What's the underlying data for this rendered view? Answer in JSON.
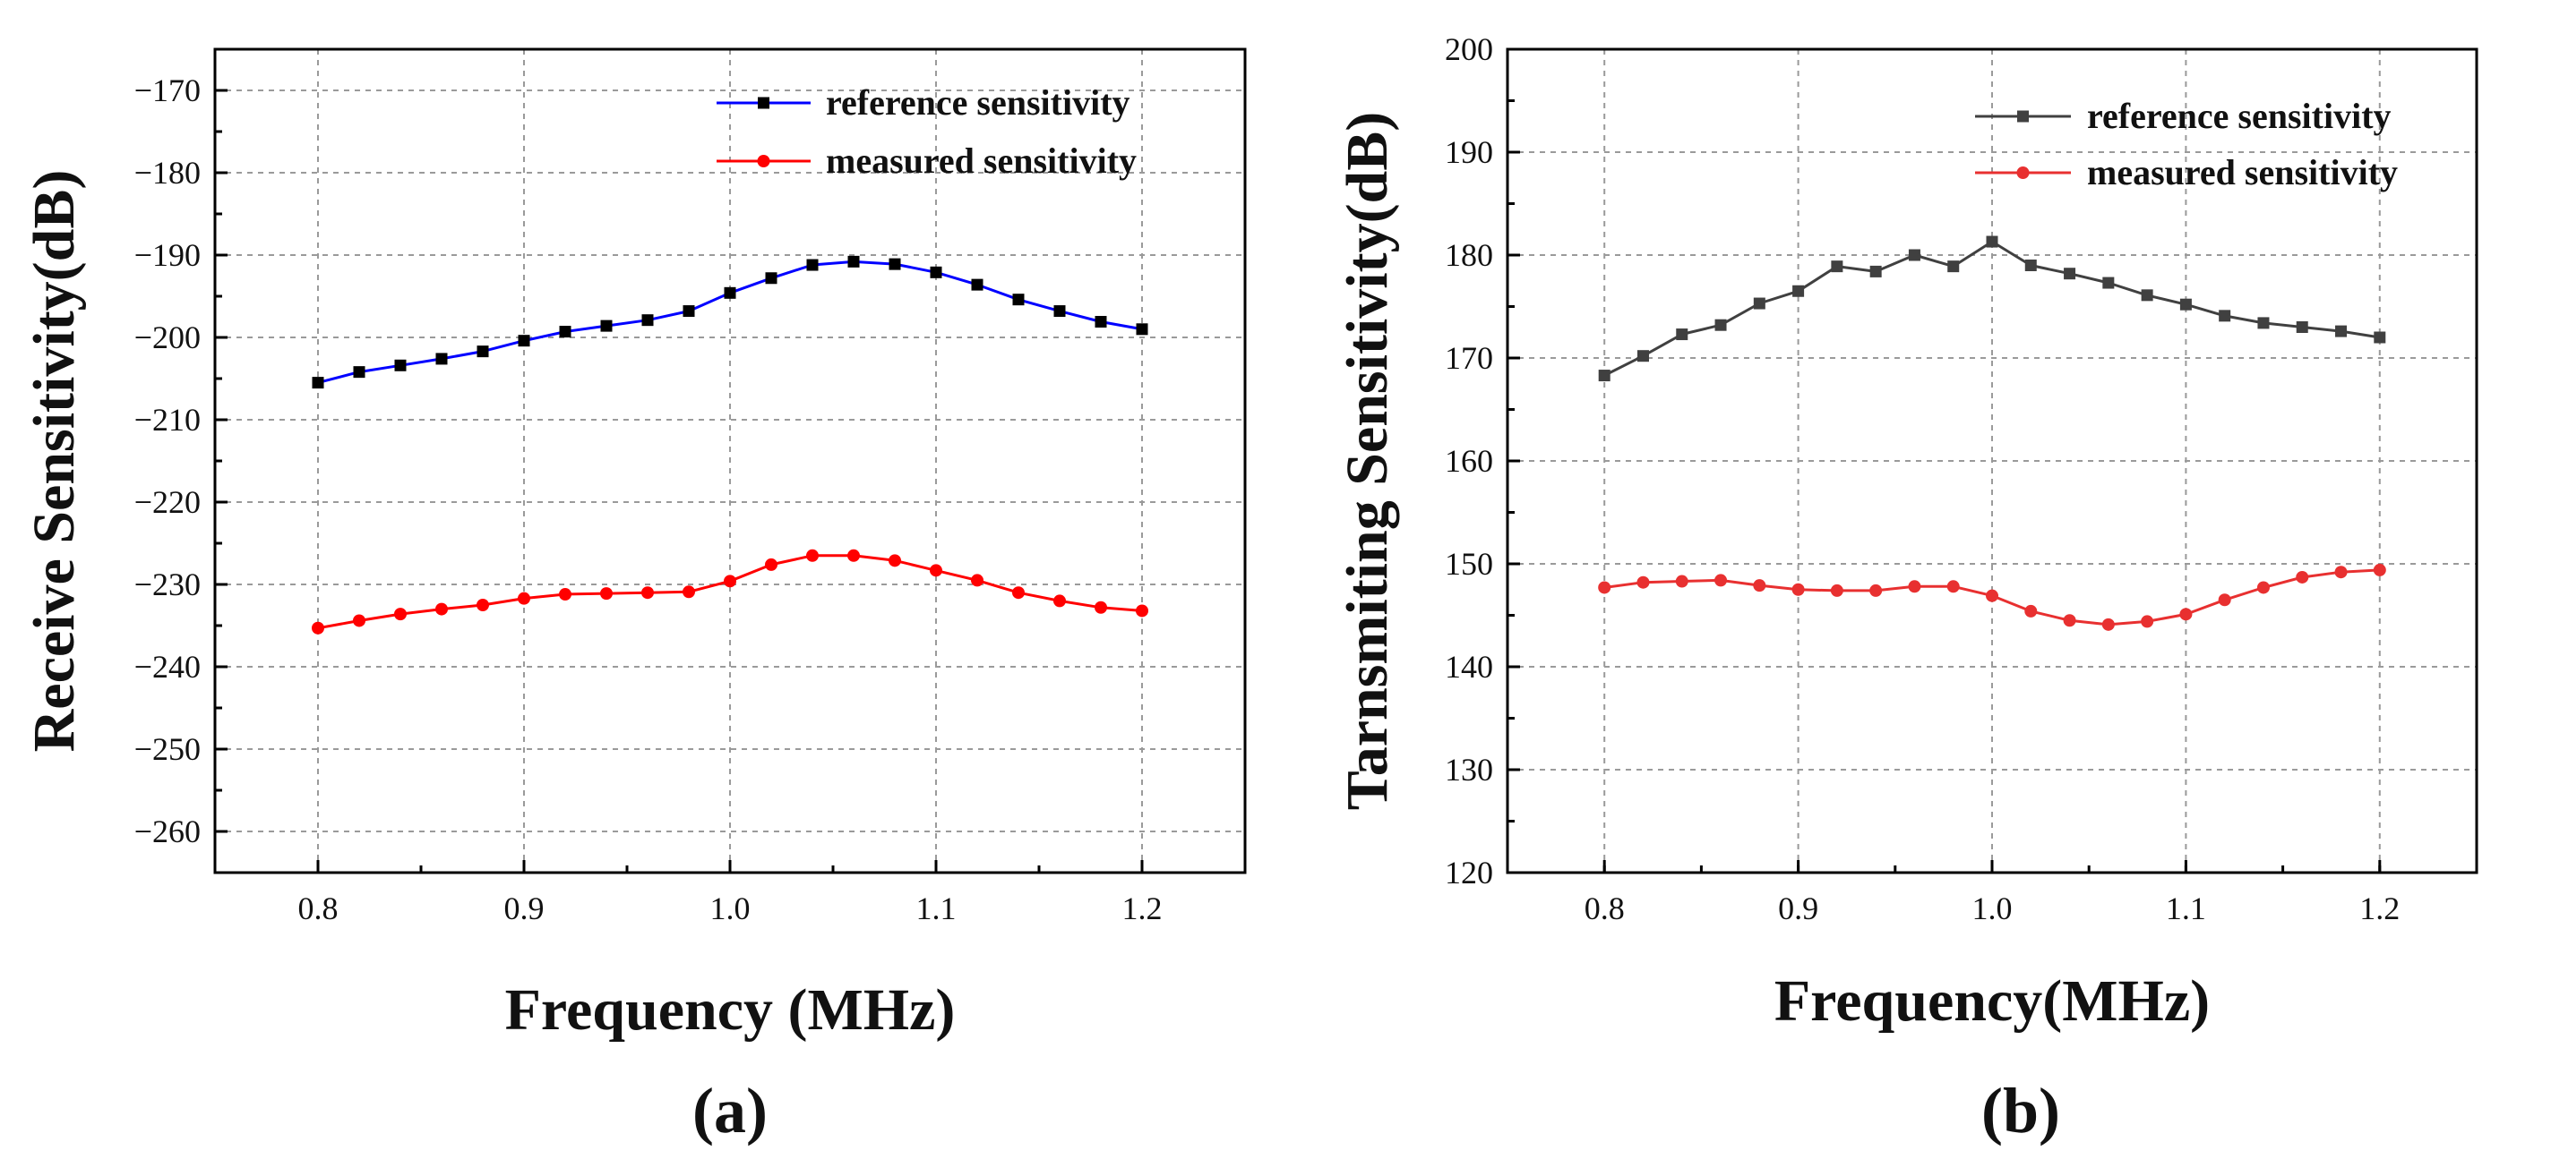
{
  "chart_data": [
    {
      "type": "line",
      "panel_label": "(a)",
      "xlabel": "Frequency (MHz)",
      "ylabel": "Receive Sensitivity(dB)",
      "xlim": [
        0.75,
        1.25
      ],
      "ylim": [
        -265,
        -165
      ],
      "xticks": [
        "0.8",
        "0.9",
        "1.0",
        "1.1",
        "1.2"
      ],
      "yticks": [
        "−170",
        "−180",
        "−190",
        "−200",
        "−210",
        "−220",
        "−230",
        "−240",
        "−250",
        "−260"
      ],
      "grid": true,
      "legend_position": "top-right",
      "x": [
        0.8,
        0.82,
        0.84,
        0.86,
        0.88,
        0.9,
        0.92,
        0.94,
        0.96,
        0.98,
        1.0,
        1.02,
        1.04,
        1.06,
        1.08,
        1.1,
        1.12,
        1.14,
        1.16,
        1.18,
        1.2
      ],
      "series": [
        {
          "name": "reference sensitivity",
          "color": "#0000ff",
          "marker": "square",
          "marker_color": "#000000",
          "values": [
            -205.5,
            -204.2,
            -203.4,
            -202.6,
            -201.7,
            -200.4,
            -199.3,
            -198.6,
            -197.9,
            -196.8,
            -194.6,
            -192.8,
            -191.2,
            -190.8,
            -191.1,
            -192.1,
            -193.6,
            -195.4,
            -196.8,
            -198.1,
            -199.0
          ]
        },
        {
          "name": "measured sensitivity",
          "color": "#ff0000",
          "marker": "circle",
          "marker_color": "#ff0000",
          "values": [
            -235.3,
            -234.4,
            -233.6,
            -233.0,
            -232.5,
            -231.7,
            -231.2,
            -231.1,
            -231.0,
            -230.9,
            -229.6,
            -227.6,
            -226.5,
            -226.5,
            -227.1,
            -228.3,
            -229.5,
            -231.0,
            -232.0,
            -232.8,
            -233.2
          ]
        }
      ]
    },
    {
      "type": "line",
      "panel_label": "(b)",
      "xlabel": "Frequency(MHz)",
      "ylabel": "Tarnsmiting Sensitivity(dB)",
      "xlim": [
        0.75,
        1.25
      ],
      "ylim": [
        120,
        200
      ],
      "xticks": [
        "0.8",
        "0.9",
        "1.0",
        "1.1",
        "1.2"
      ],
      "yticks": [
        "120",
        "130",
        "140",
        "150",
        "160",
        "170",
        "180",
        "190",
        "200"
      ],
      "grid": true,
      "legend_position": "top-right",
      "x": [
        0.8,
        0.82,
        0.84,
        0.86,
        0.88,
        0.9,
        0.92,
        0.94,
        0.96,
        0.98,
        1.0,
        1.02,
        1.04,
        1.06,
        1.08,
        1.1,
        1.12,
        1.14,
        1.16,
        1.18,
        1.2
      ],
      "series": [
        {
          "name": "reference sensitivity",
          "color": "#404040",
          "marker": "square",
          "marker_color": "#404040",
          "values": [
            168.3,
            170.2,
            172.3,
            173.2,
            175.3,
            176.5,
            178.9,
            178.4,
            180.0,
            178.9,
            181.3,
            179.0,
            178.2,
            177.3,
            176.1,
            175.2,
            174.1,
            173.4,
            173.0,
            172.6,
            172.0
          ]
        },
        {
          "name": "measured sensitivity",
          "color": "#e83030",
          "marker": "circle",
          "marker_color": "#e83030",
          "values": [
            147.7,
            148.2,
            148.3,
            148.4,
            147.9,
            147.5,
            147.4,
            147.4,
            147.8,
            147.8,
            146.9,
            145.4,
            144.5,
            144.1,
            144.4,
            145.1,
            146.5,
            147.7,
            148.7,
            149.2,
            149.4
          ]
        }
      ]
    }
  ]
}
